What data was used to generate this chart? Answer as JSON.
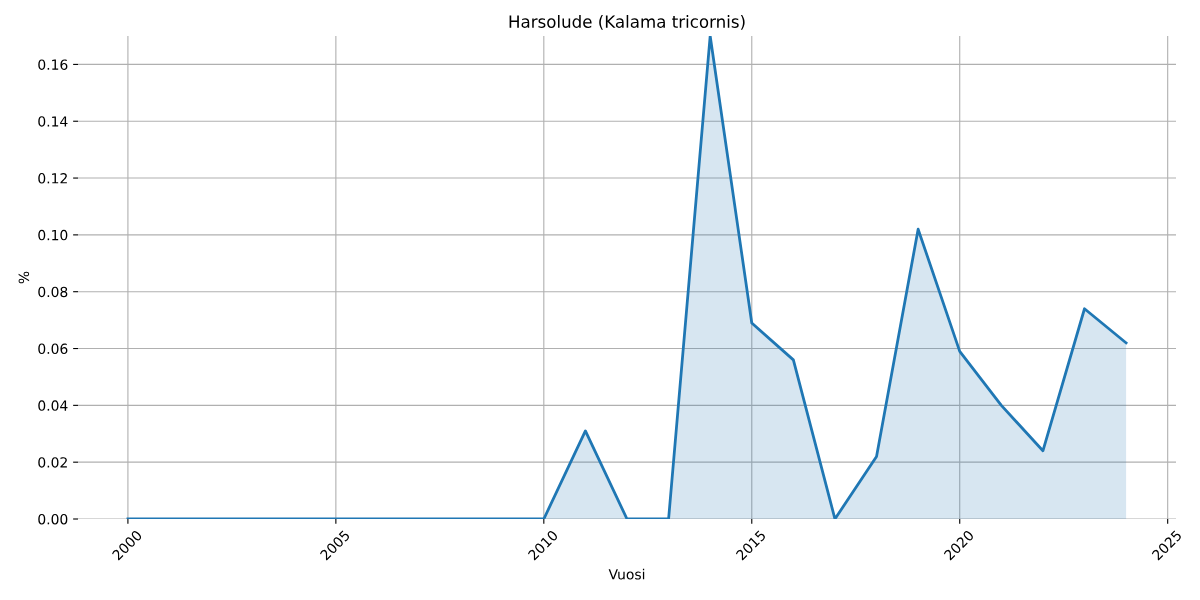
{
  "chart_data": {
    "type": "area",
    "title": "Harsolude (Kalama tricornis)",
    "xlabel": "Vuosi",
    "ylabel": "%",
    "x": [
      2000,
      2001,
      2002,
      2003,
      2004,
      2005,
      2006,
      2007,
      2008,
      2009,
      2010,
      2011,
      2012,
      2013,
      2014,
      2015,
      2016,
      2017,
      2018,
      2019,
      2020,
      2021,
      2022,
      2023,
      2024
    ],
    "series": [
      {
        "color": "#1f77b4",
        "values": [
          0,
          0,
          0,
          0,
          0,
          0,
          0,
          0,
          0,
          0,
          0,
          0.031,
          0,
          0,
          0.17,
          0.069,
          0.056,
          0,
          0.022,
          0.102,
          0.059,
          0.04,
          0.024,
          0.074,
          0.062
        ]
      }
    ],
    "xlim": [
      1998.8,
      2025.2
    ],
    "xticks": [
      2000,
      2005,
      2010,
      2015,
      2020,
      2025
    ],
    "ylim": [
      0,
      0.17
    ],
    "yticks": [
      {
        "value": 0,
        "label": "0.00"
      },
      {
        "value": 0.02,
        "label": "0.02"
      },
      {
        "value": 0.04,
        "label": "0.04"
      },
      {
        "value": 0.06,
        "label": "0.06"
      },
      {
        "value": 0.08,
        "label": "0.08"
      },
      {
        "value": 0.1,
        "label": "0.10"
      },
      {
        "value": 0.12,
        "label": "0.12"
      },
      {
        "value": 0.14,
        "label": "0.14"
      },
      {
        "value": 0.16,
        "label": "0.16"
      }
    ],
    "grid": true
  }
}
